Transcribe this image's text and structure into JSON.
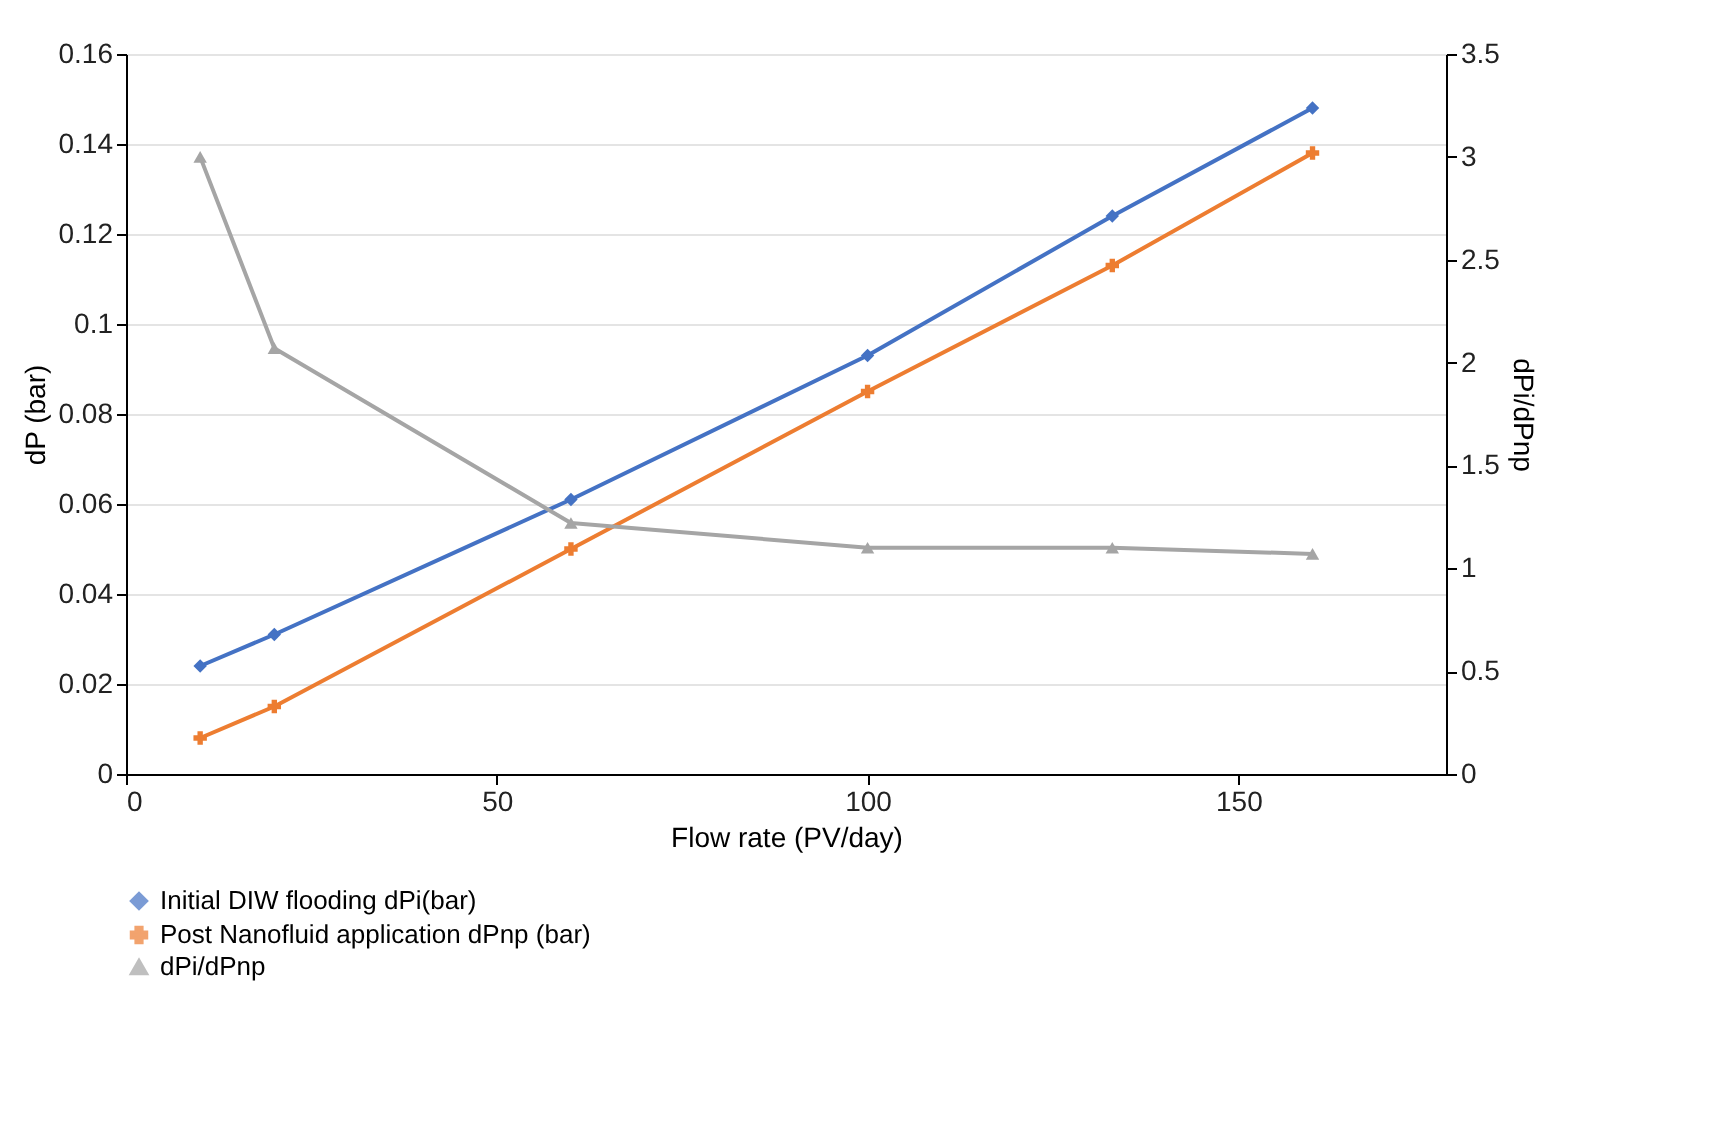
{
  "chart_data": {
    "type": "line",
    "xlabel": "Flow rate (PV/day)",
    "ylabel": "dP (bar)",
    "y2label": "dPi/dPnp",
    "x": [
      10,
      20,
      60,
      100,
      133,
      160
    ],
    "series": [
      {
        "name": "Initial DIW flooding dPi(bar)",
        "color": "#4472c4",
        "marker": "diamond",
        "values": [
          0.024,
          0.031,
          0.061,
          0.093,
          0.124,
          0.148
        ]
      },
      {
        "name": "Post Nanofluid application dPnp (bar)",
        "color": "#ed7d31",
        "marker": "cross",
        "values": [
          0.008,
          0.015,
          0.05,
          0.085,
          0.113,
          0.138
        ]
      },
      {
        "name": "dPi/dPnp",
        "color": "#a5a5a5",
        "marker": "triangle",
        "axis": "y2",
        "values": [
          3.0,
          2.07,
          1.22,
          1.1,
          1.1,
          1.07
        ]
      }
    ],
    "xlim": [
      0,
      178
    ],
    "xticks": [
      0,
      50,
      100,
      150
    ],
    "ylim": [
      0,
      0.16
    ],
    "yticks": [
      0,
      0.02,
      0.04,
      0.06,
      0.08,
      0.1,
      0.12,
      0.14,
      0.16
    ],
    "y2lim": [
      0,
      3.5
    ],
    "y2ticks": [
      0,
      0.5,
      1,
      1.5,
      2,
      2.5,
      3,
      3.5
    ],
    "grid": "y",
    "legend": "bottom",
    "line_style": "solid"
  }
}
